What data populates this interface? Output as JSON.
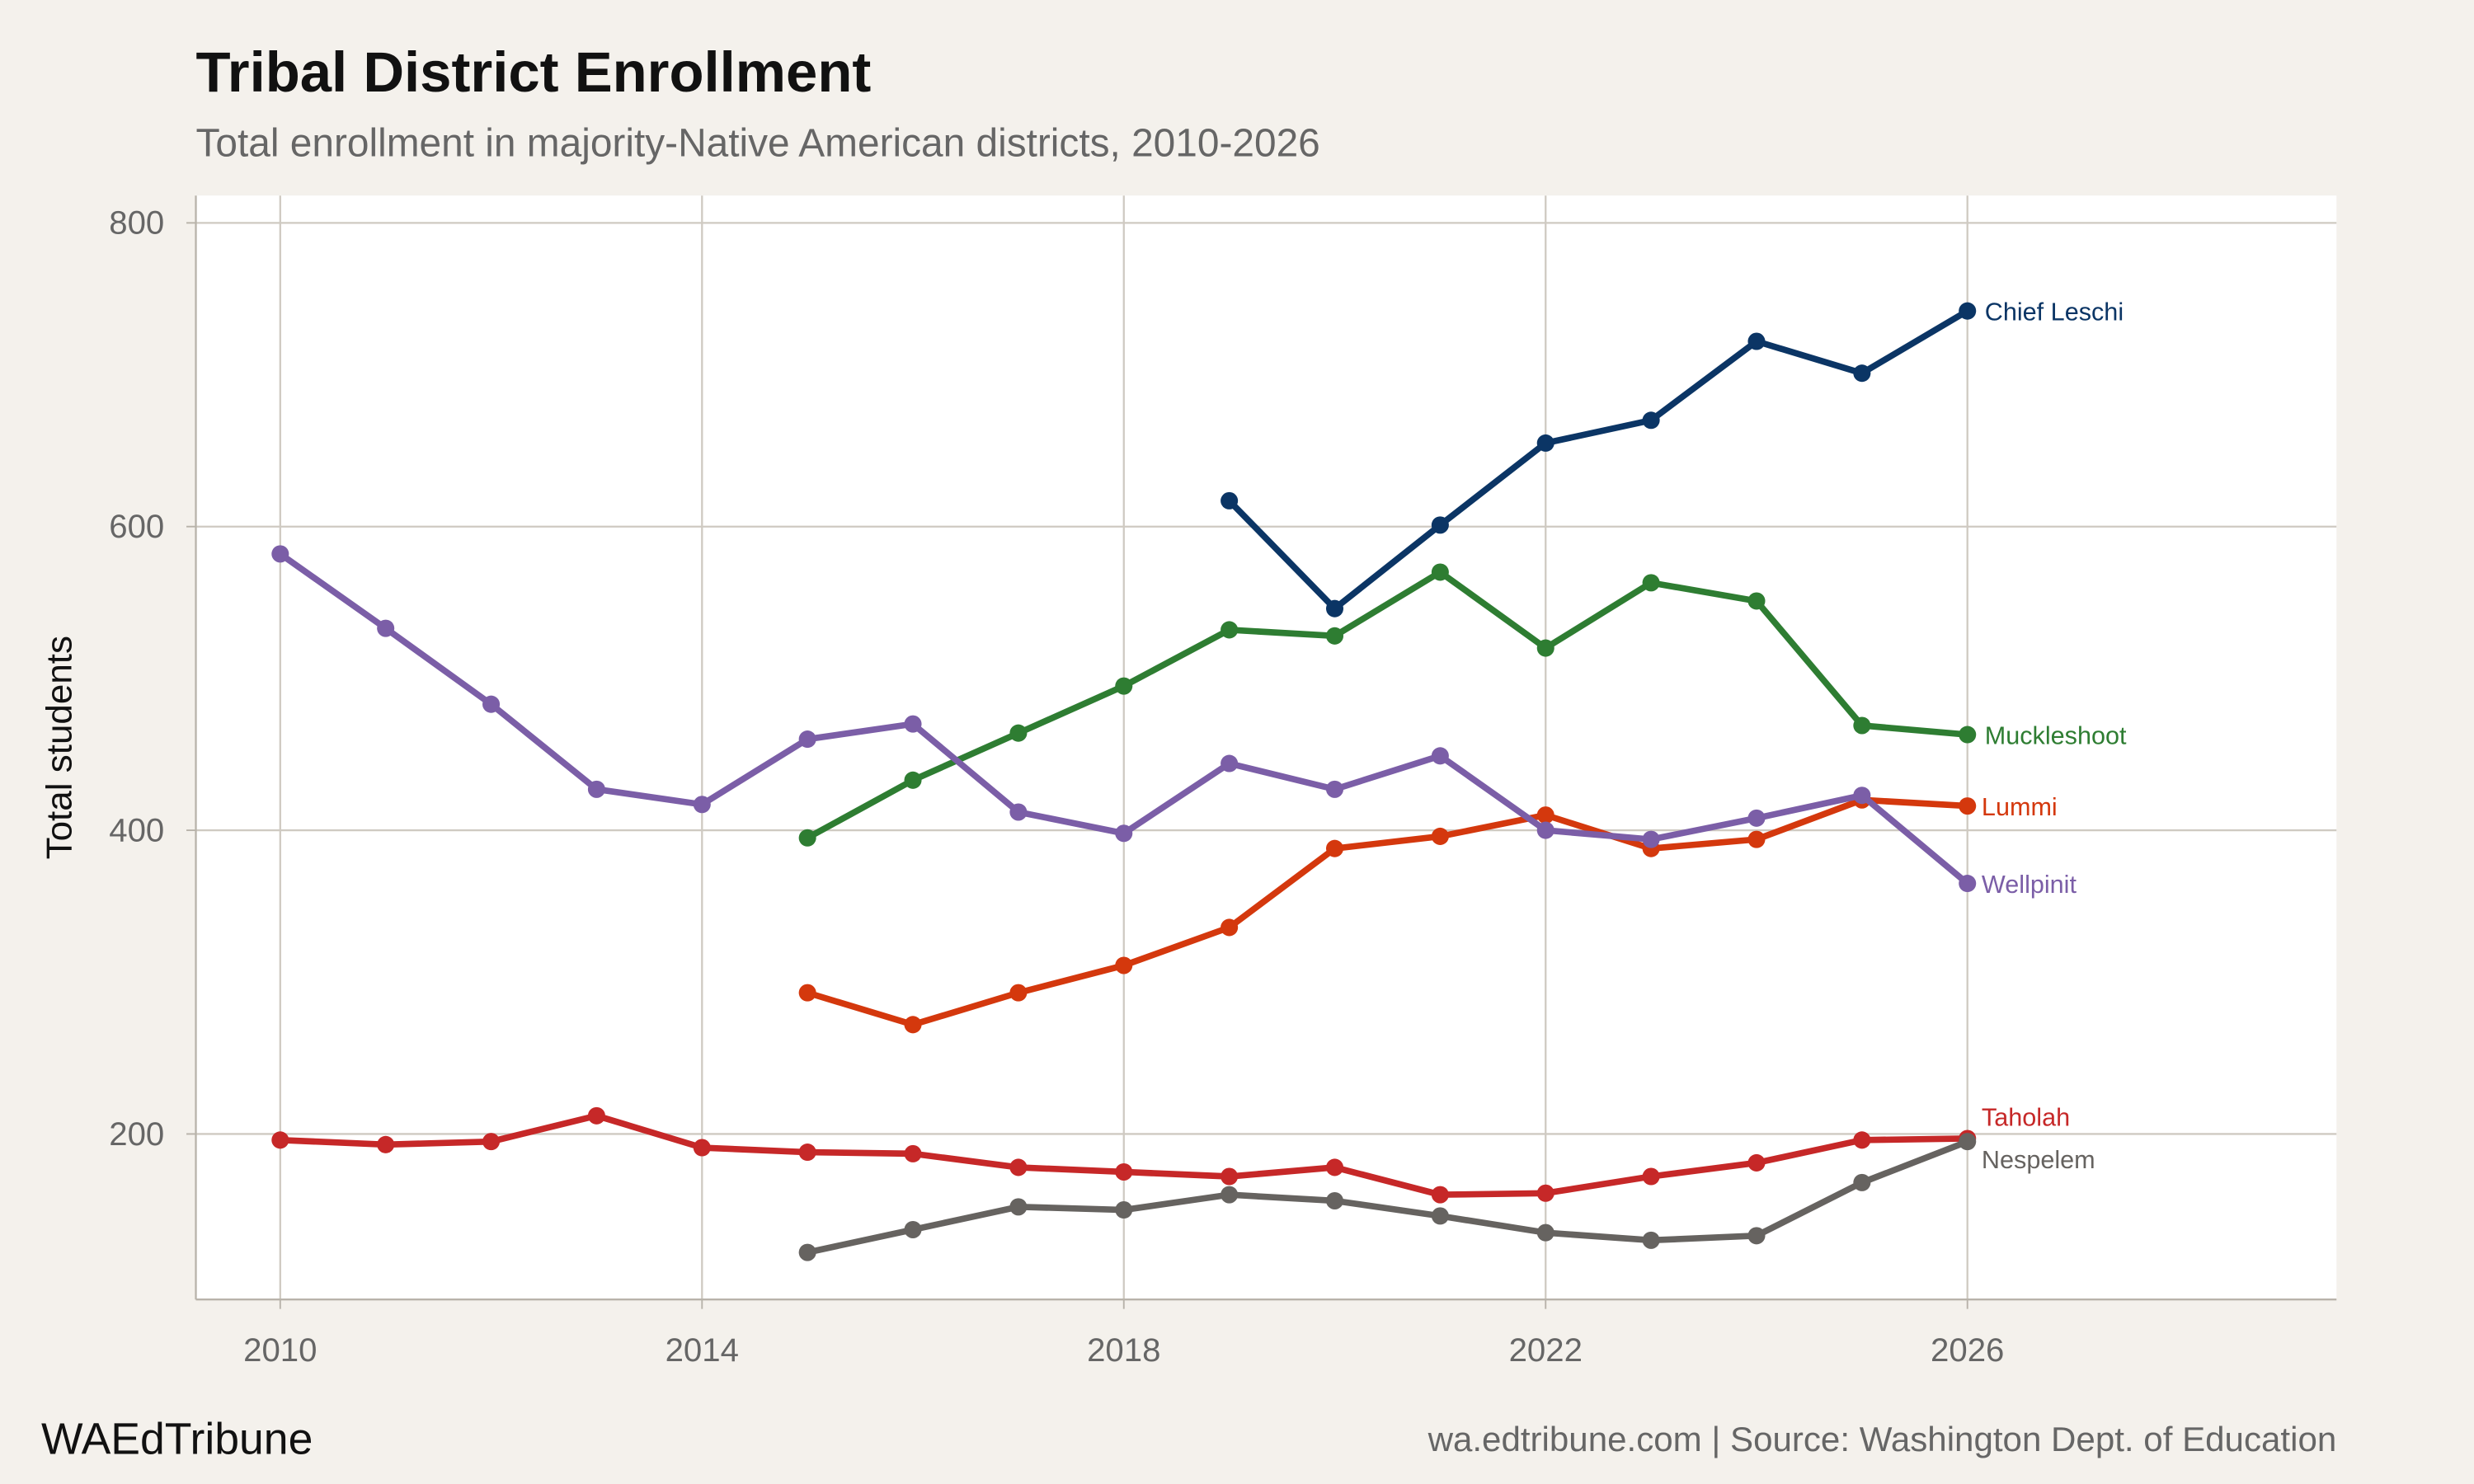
{
  "chart_data": {
    "type": "line",
    "title": "Tribal District Enrollment",
    "subtitle": "Total enrollment in majority-Native American districts, 2010-2026",
    "xlabel": "",
    "ylabel": "Total students",
    "xlim": [
      2009.2,
      2029.5
    ],
    "ylim": [
      91,
      818
    ],
    "xticks": [
      2010,
      2014,
      2018,
      2022,
      2026
    ],
    "yticks": [
      200,
      400,
      600,
      800
    ],
    "grid": true,
    "legend": "direct labels at line ends",
    "series": [
      {
        "name": "Chief Leschi",
        "color": "#0b3565",
        "x": [
          2019,
          2020,
          2021,
          2022,
          2023,
          2024,
          2025,
          2026
        ],
        "values": [
          617,
          546,
          601,
          655,
          670,
          722,
          701,
          742
        ]
      },
      {
        "name": "Muckleshoot",
        "color": "#2e7d32",
        "x": [
          2015,
          2016,
          2017,
          2018,
          2019,
          2020,
          2021,
          2022,
          2023,
          2024,
          2025,
          2026
        ],
        "values": [
          395,
          433,
          464,
          495,
          532,
          528,
          570,
          520,
          563,
          551,
          469,
          463
        ]
      },
      {
        "name": "Lummi",
        "color": "#d4380d",
        "x": [
          2015,
          2016,
          2017,
          2018,
          2019,
          2020,
          2021,
          2022,
          2023,
          2024,
          2025,
          2026
        ],
        "values": [
          293,
          272,
          293,
          311,
          336,
          388,
          396,
          410,
          388,
          394,
          420,
          416
        ]
      },
      {
        "name": "Wellpinit",
        "color": "#7b5ea7",
        "x": [
          2010,
          2011,
          2012,
          2013,
          2014,
          2015,
          2016,
          2017,
          2018,
          2019,
          2020,
          2021,
          2022,
          2023,
          2024,
          2025,
          2026
        ],
        "values": [
          582,
          533,
          483,
          427,
          417,
          460,
          470,
          412,
          398,
          444,
          427,
          449,
          400,
          394,
          408,
          423,
          365
        ]
      },
      {
        "name": "Taholah",
        "color": "#c62828",
        "x": [
          2010,
          2011,
          2012,
          2013,
          2014,
          2015,
          2016,
          2017,
          2018,
          2019,
          2020,
          2021,
          2022,
          2023,
          2024,
          2025,
          2026
        ],
        "values": [
          196,
          193,
          195,
          212,
          191,
          188,
          187,
          178,
          175,
          172,
          178,
          160,
          161,
          172,
          181,
          196,
          197
        ]
      },
      {
        "name": "Nespelem",
        "color": "#666360",
        "x": [
          2015,
          2016,
          2017,
          2018,
          2019,
          2020,
          2021,
          2022,
          2023,
          2024,
          2025,
          2026
        ],
        "values": [
          122,
          137,
          152,
          150,
          160,
          156,
          146,
          135,
          130,
          133,
          168,
          195
        ]
      }
    ]
  },
  "footer": {
    "brand": "WAEdTribune",
    "source": "wa.edtribune.com | Source: Washington Dept. of Education"
  }
}
